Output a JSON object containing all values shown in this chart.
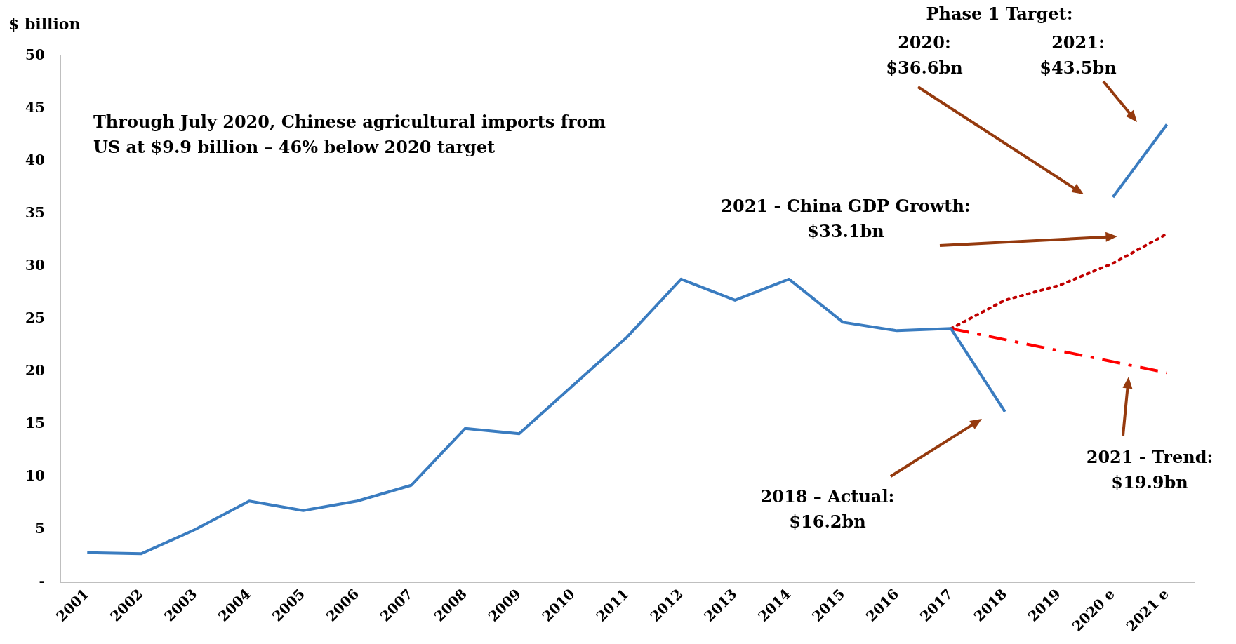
{
  "chart_data": {
    "type": "line",
    "ylabel": "$ billion",
    "categories": [
      "2001",
      "2002",
      "2003",
      "2004",
      "2005",
      "2006",
      "2007",
      "2008",
      "2009",
      "2010",
      "2011",
      "2012",
      "2013",
      "2014",
      "2015",
      "2016",
      "2017",
      "2018",
      "2019",
      "2020 e",
      "2021 e"
    ],
    "series": [
      {
        "color": "#3a7cc0",
        "line_style": "solid",
        "values": [
          2.8,
          2.7,
          5.0,
          7.7,
          6.8,
          7.7,
          9.2,
          14.6,
          14.1,
          18.7,
          23.3,
          28.8,
          26.8,
          28.8,
          24.7,
          23.9,
          24.1,
          16.2,
          null,
          null,
          null
        ]
      },
      {
        "color": "#3a7cc0",
        "line_style": "solid",
        "values": [
          null,
          null,
          null,
          null,
          null,
          null,
          null,
          null,
          null,
          null,
          null,
          null,
          null,
          null,
          null,
          null,
          null,
          null,
          null,
          36.6,
          43.5
        ]
      },
      {
        "color": "#c00000",
        "line_style": "dotted",
        "values": [
          null,
          null,
          null,
          null,
          null,
          null,
          null,
          null,
          null,
          null,
          null,
          null,
          null,
          null,
          null,
          null,
          24.1,
          26.8,
          28.2,
          30.3,
          33.1
        ]
      },
      {
        "color": "#ff0000",
        "line_style": "dashed",
        "values": [
          null,
          null,
          null,
          null,
          null,
          null,
          null,
          null,
          null,
          null,
          null,
          null,
          null,
          null,
          null,
          null,
          24.1,
          null,
          null,
          null,
          19.9
        ]
      }
    ],
    "ylim": [
      0,
      50
    ],
    "yticks": [
      {
        "value": 0,
        "label": "-"
      },
      5,
      10,
      15,
      20,
      25,
      30,
      35,
      40,
      45,
      50
    ],
    "grid": false,
    "legend": false,
    "marker": "none",
    "annotations": [
      "Through July 2020, Chinese agricultural imports from\nUS at $9.9 billion – 46% below 2020 target",
      "Phase 1 Target:",
      "2020:\n$36.6bn",
      "2021:\n$43.5bn",
      "2021 - China GDP Growth:\n$33.1bn",
      "2018 – Actual:\n$16.2bn",
      "2021 - Trend:\n$19.9bn"
    ]
  }
}
